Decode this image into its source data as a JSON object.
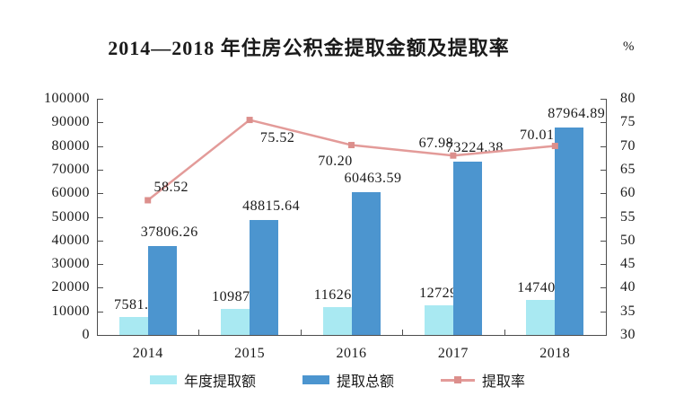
{
  "title": "2014—2018 年住房公积金提取金额及提取率",
  "chart_data": {
    "type": "bar",
    "title": "2014—2018 年住房公积金提取金额及提取率",
    "categories": [
      "2014",
      "2015",
      "2016",
      "2017",
      "2018"
    ],
    "series": [
      {
        "name": "年度提取额",
        "type": "bar",
        "axis": "left",
        "color": "#a9e9f2",
        "values": [
          7581.96,
          10987.47,
          11626.88,
          12729.8,
          14740.51
        ],
        "labels": [
          "7581.96",
          "10987.47",
          "11626.88",
          "12729.8",
          "14740.51"
        ]
      },
      {
        "name": "提取总额",
        "type": "bar",
        "axis": "left",
        "color": "#4c95cf",
        "values": [
          37806.26,
          48815.64,
          60463.59,
          73224.38,
          87964.89
        ],
        "labels": [
          "37806.26",
          "48815.64",
          "60463.59",
          "73224.38",
          "87964.89"
        ]
      },
      {
        "name": "提取率",
        "type": "line",
        "axis": "right",
        "color": "#e39b99",
        "marker_color": "#dc8f8c",
        "values": [
          58.52,
          75.52,
          70.2,
          67.98,
          70.01
        ],
        "labels": [
          "58.52",
          "75.52",
          "70.20",
          "67.98",
          "70.01"
        ]
      }
    ],
    "left_axis": {
      "min": 0,
      "max": 100000,
      "step": 10000
    },
    "right_axis": {
      "min": 30,
      "max": 80,
      "step": 5,
      "unit": "%"
    },
    "legend": {
      "position": "bottom",
      "items": [
        "年度提取额",
        "提取总额",
        "提取率"
      ]
    },
    "grid": false,
    "axis_color": "#4d4d4d",
    "text_color": "#1a1a1a"
  }
}
